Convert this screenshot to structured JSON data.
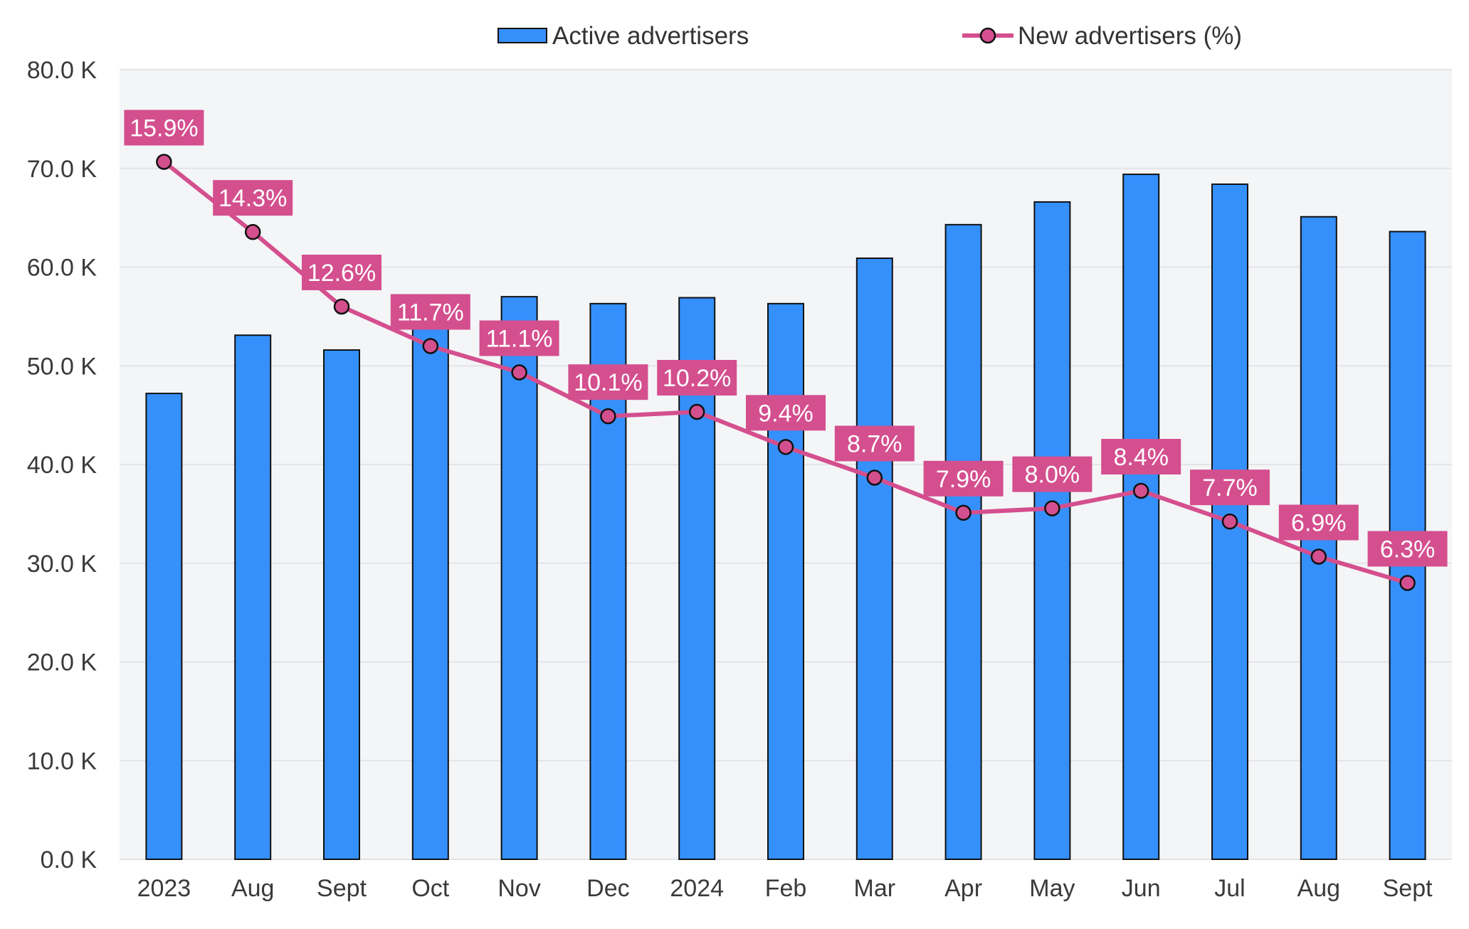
{
  "colors": {
    "bar_fill": "#3590fb",
    "bar_stroke": "#111111",
    "line": "#d44f8e",
    "marker_fill": "#d44f8e",
    "marker_stroke": "#111111",
    "label_bg": "#d44f8e",
    "label_text": "#ffffff",
    "plot_bg": "#f4f5f7",
    "grid": "#e3e4e8",
    "axis_text": "#3a3a3a"
  },
  "chart_data": {
    "type": "bar",
    "categories": [
      "2023",
      "Aug",
      "Sept",
      "Oct",
      "Nov",
      "Dec",
      "2024",
      "Feb",
      "Mar",
      "Apr",
      "May",
      "Jun",
      "Jul",
      "Aug",
      "Sept"
    ],
    "series": [
      {
        "name": "Active advertisers",
        "type": "bar",
        "axis": "left",
        "values": [
          47200,
          53100,
          51600,
          53800,
          57000,
          56300,
          56900,
          56300,
          60900,
          64300,
          66600,
          69400,
          68400,
          65100,
          63600
        ]
      },
      {
        "name": "New advertisers (%)",
        "type": "line",
        "axis": "right",
        "values": [
          15.9,
          14.3,
          12.6,
          11.7,
          11.1,
          10.1,
          10.2,
          9.4,
          8.7,
          7.9,
          8.0,
          8.4,
          7.7,
          6.9,
          6.3
        ],
        "labels": [
          "15.9%",
          "14.3%",
          "12.6%",
          "11.7%",
          "11.1%",
          "10.1%",
          "10.2%",
          "9.4%",
          "8.7%",
          "7.9%",
          "8.0%",
          "8.4%",
          "7.7%",
          "6.9%",
          "6.3%"
        ]
      }
    ],
    "y_left": {
      "ylim": [
        0,
        80000
      ],
      "ticks": [
        "0.0 K",
        "10.0 K",
        "20.0 K",
        "30.0 K",
        "40.0 K",
        "50.0 K",
        "60.0 K",
        "70.0 K",
        "80.0 K"
      ]
    },
    "y_right_scale": {
      "ylim": [
        0,
        18
      ]
    },
    "legend": {
      "position": "top-center",
      "entries": [
        "Active advertisers",
        "New advertisers (%)"
      ]
    },
    "grid": true,
    "title": "",
    "xlabel": "",
    "ylabel": ""
  }
}
